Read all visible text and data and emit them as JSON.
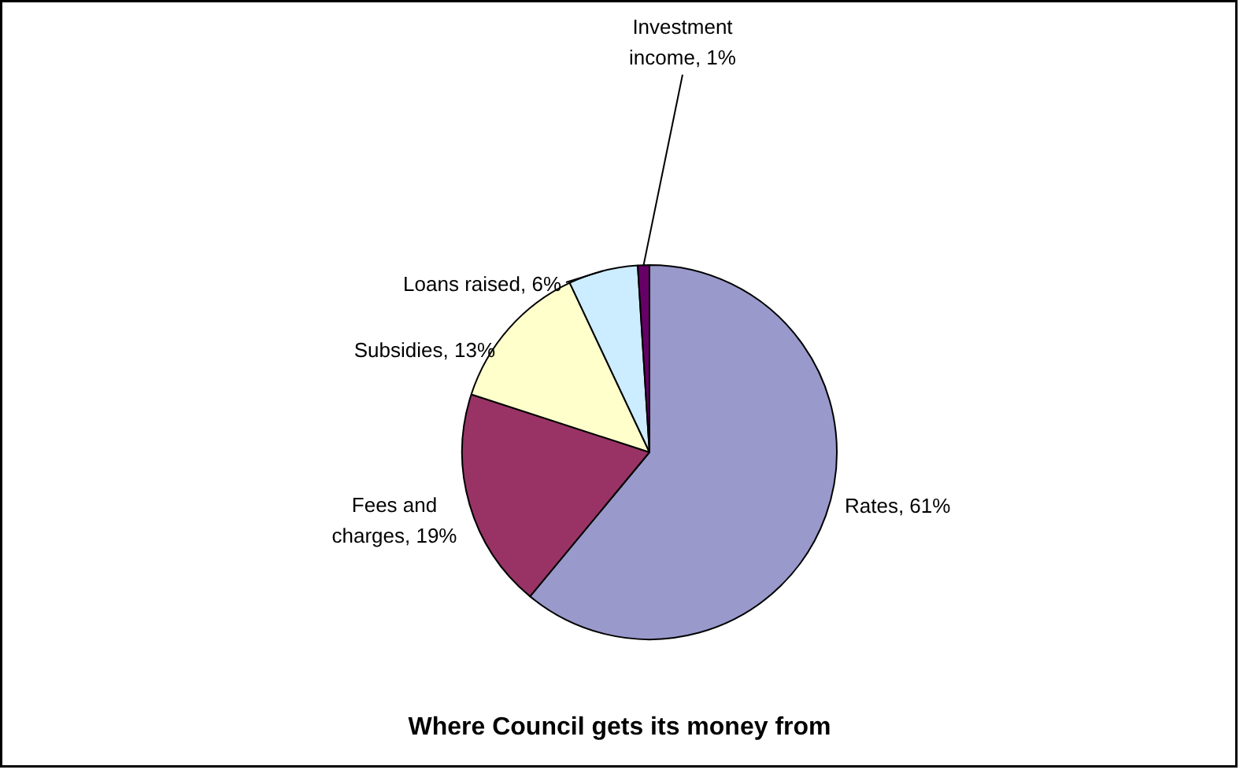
{
  "chart_data": {
    "type": "pie",
    "title": "Where Council gets its money from",
    "categories": [
      "Rates",
      "Fees and charges",
      "Subsidies",
      "Loans raised",
      "Investment income"
    ],
    "values": [
      61,
      19,
      13,
      6,
      1
    ],
    "value_labels": [
      "61%",
      "19%",
      "13%",
      "6%",
      "1%"
    ],
    "colors": [
      "#9999cc",
      "#993366",
      "#ffffcc",
      "#ccecff",
      "#660066"
    ]
  }
}
